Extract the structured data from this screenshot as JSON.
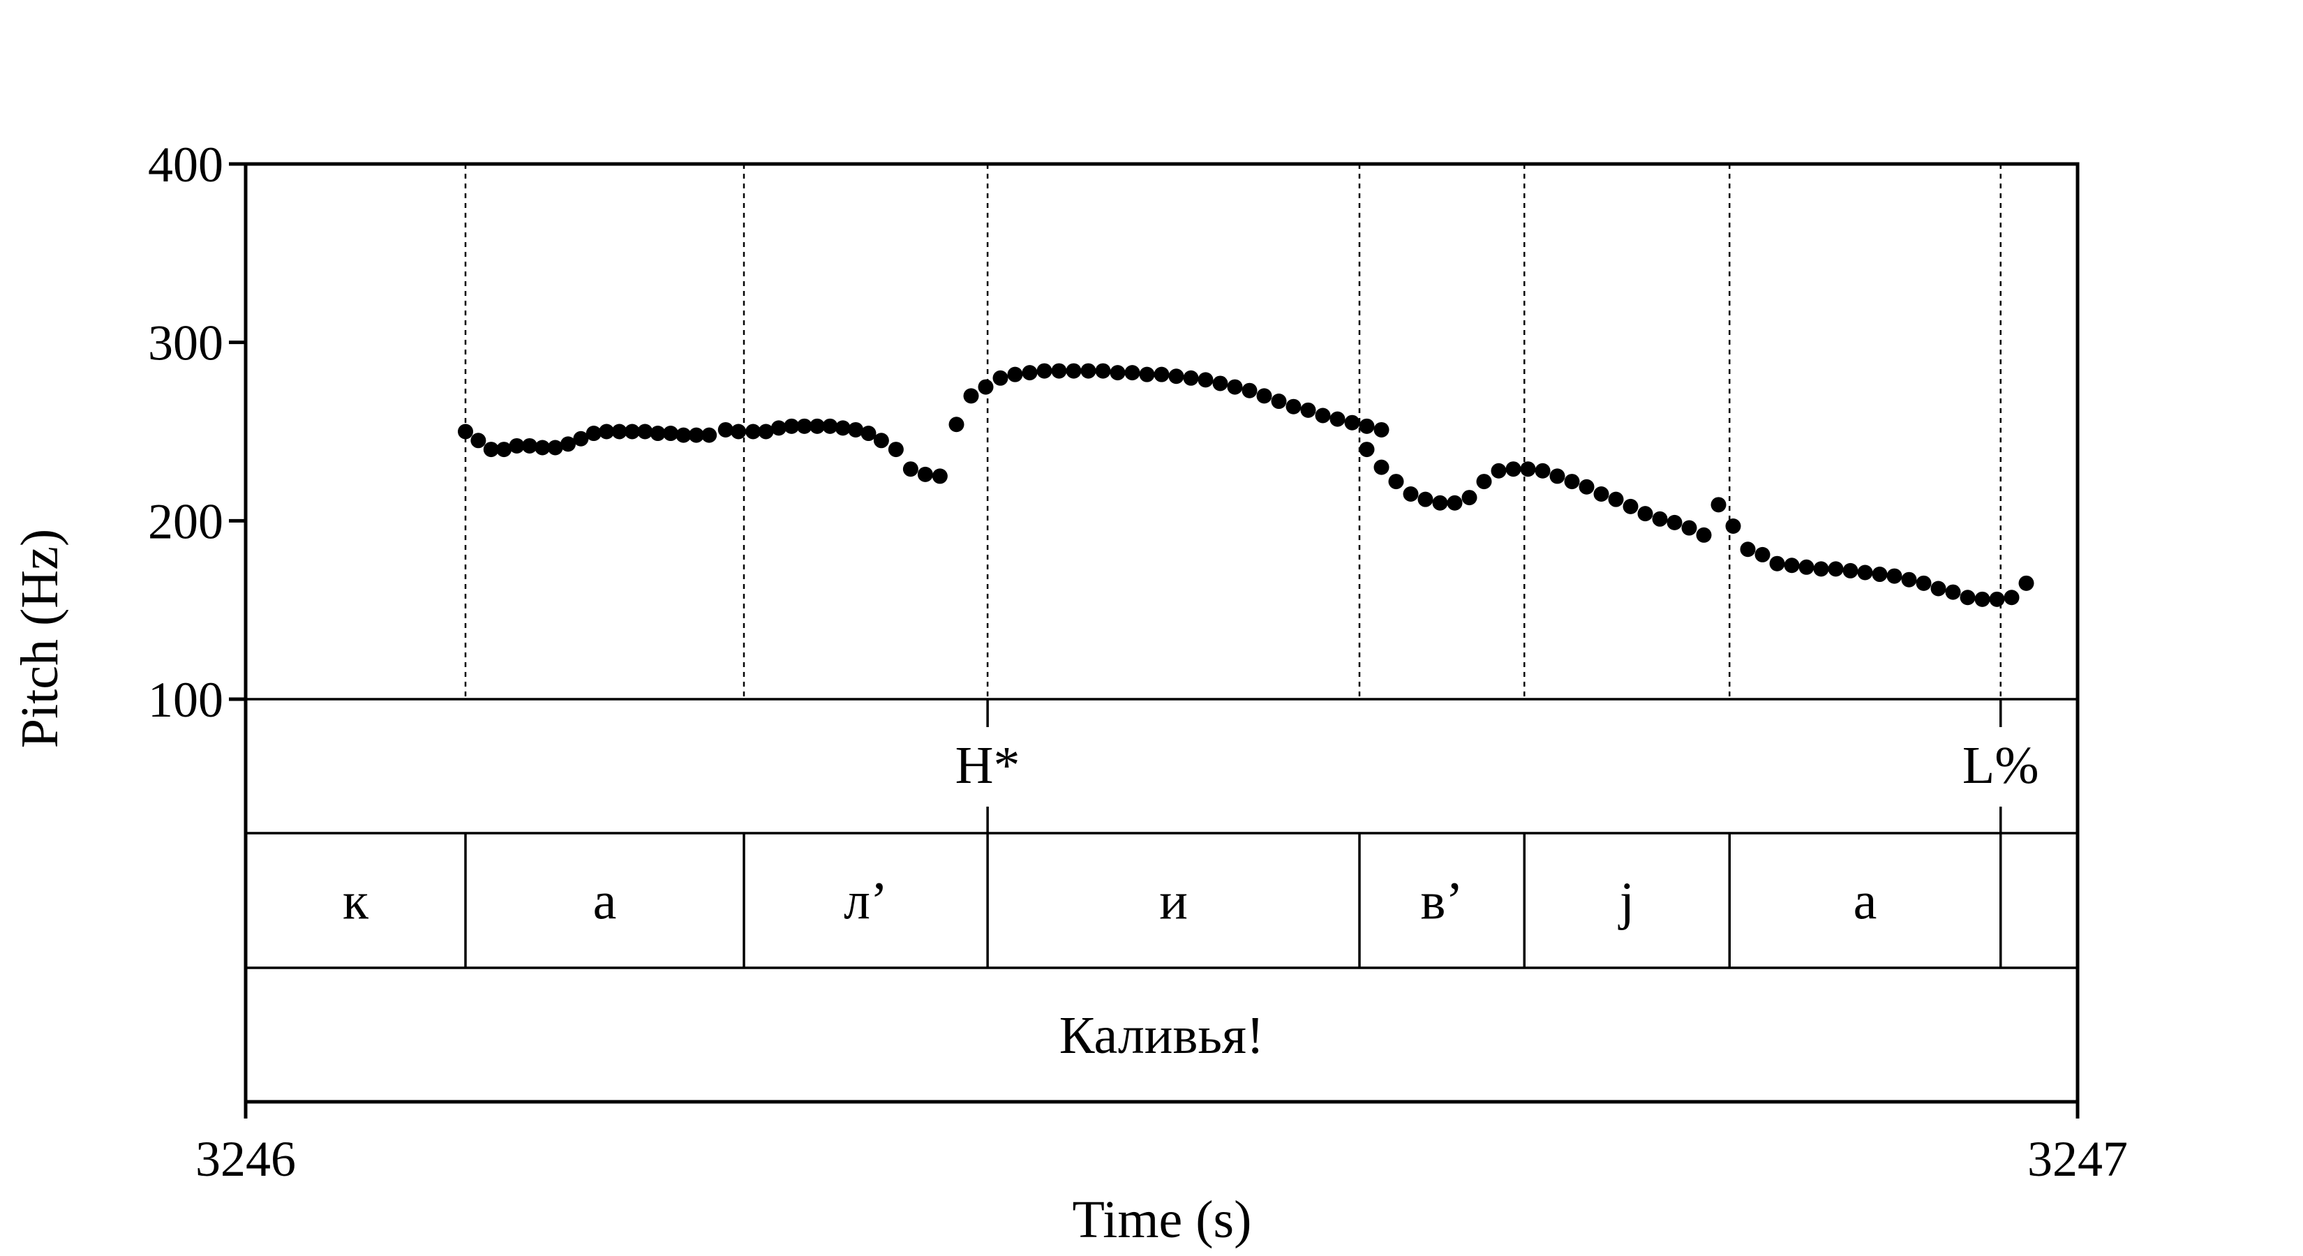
{
  "chart_data": {
    "type": "scatter",
    "xlabel": "Time (s)",
    "ylabel": "Pitch (Hz)",
    "xlim": [
      3246,
      3247
    ],
    "ylim": [
      100,
      400
    ],
    "x_ticks": [
      "3246",
      "3247"
    ],
    "y_ticks": [
      "100",
      "200",
      "300",
      "400"
    ],
    "grid": false,
    "legend": "none",
    "boundaries": [
      3246.12,
      3246.272,
      3246.405,
      3246.608,
      3246.698,
      3246.81,
      3246.958
    ],
    "pitch_points": [
      [
        3246.12,
        250
      ],
      [
        3246.127,
        245
      ],
      [
        3246.134,
        240
      ],
      [
        3246.141,
        240
      ],
      [
        3246.148,
        242
      ],
      [
        3246.155,
        242
      ],
      [
        3246.162,
        241
      ],
      [
        3246.169,
        241
      ],
      [
        3246.176,
        243
      ],
      [
        3246.183,
        246
      ],
      [
        3246.19,
        249
      ],
      [
        3246.197,
        250
      ],
      [
        3246.204,
        250
      ],
      [
        3246.211,
        250
      ],
      [
        3246.218,
        250
      ],
      [
        3246.225,
        249
      ],
      [
        3246.232,
        249
      ],
      [
        3246.239,
        248
      ],
      [
        3246.246,
        248
      ],
      [
        3246.253,
        248
      ],
      [
        3246.262,
        251
      ],
      [
        3246.269,
        250
      ],
      [
        3246.277,
        250
      ],
      [
        3246.284,
        250
      ],
      [
        3246.291,
        252
      ],
      [
        3246.298,
        253
      ],
      [
        3246.305,
        253
      ],
      [
        3246.312,
        253
      ],
      [
        3246.319,
        253
      ],
      [
        3246.326,
        252
      ],
      [
        3246.333,
        251
      ],
      [
        3246.34,
        249
      ],
      [
        3246.347,
        245
      ],
      [
        3246.355,
        240
      ],
      [
        3246.363,
        229
      ],
      [
        3246.371,
        226
      ],
      [
        3246.379,
        225
      ],
      [
        3246.388,
        254
      ],
      [
        3246.396,
        270
      ],
      [
        3246.404,
        275
      ],
      [
        3246.412,
        280
      ],
      [
        3246.42,
        282
      ],
      [
        3246.428,
        283
      ],
      [
        3246.436,
        284
      ],
      [
        3246.444,
        284
      ],
      [
        3246.452,
        284
      ],
      [
        3246.46,
        284
      ],
      [
        3246.468,
        284
      ],
      [
        3246.476,
        283
      ],
      [
        3246.484,
        283
      ],
      [
        3246.492,
        282
      ],
      [
        3246.5,
        282
      ],
      [
        3246.508,
        281
      ],
      [
        3246.516,
        280
      ],
      [
        3246.524,
        279
      ],
      [
        3246.532,
        277
      ],
      [
        3246.54,
        275
      ],
      [
        3246.548,
        273
      ],
      [
        3246.556,
        270
      ],
      [
        3246.564,
        267
      ],
      [
        3246.572,
        264
      ],
      [
        3246.58,
        262
      ],
      [
        3246.588,
        259
      ],
      [
        3246.596,
        257
      ],
      [
        3246.604,
        255
      ],
      [
        3246.612,
        253
      ],
      [
        3246.62,
        251
      ],
      [
        3246.612,
        240
      ],
      [
        3246.62,
        230
      ],
      [
        3246.628,
        222
      ],
      [
        3246.636,
        215
      ],
      [
        3246.644,
        212
      ],
      [
        3246.652,
        210
      ],
      [
        3246.66,
        210
      ],
      [
        3246.668,
        213
      ],
      [
        3246.676,
        222
      ],
      [
        3246.684,
        228
      ],
      [
        3246.692,
        229
      ],
      [
        3246.7,
        229
      ],
      [
        3246.708,
        228
      ],
      [
        3246.716,
        225
      ],
      [
        3246.724,
        222
      ],
      [
        3246.732,
        219
      ],
      [
        3246.74,
        215
      ],
      [
        3246.748,
        212
      ],
      [
        3246.756,
        208
      ],
      [
        3246.764,
        204
      ],
      [
        3246.772,
        201
      ],
      [
        3246.78,
        199
      ],
      [
        3246.788,
        196
      ],
      [
        3246.796,
        192
      ],
      [
        3246.804,
        209
      ],
      [
        3246.812,
        197
      ],
      [
        3246.82,
        184
      ],
      [
        3246.828,
        181
      ],
      [
        3246.836,
        176
      ],
      [
        3246.844,
        175
      ],
      [
        3246.852,
        174
      ],
      [
        3246.86,
        173
      ],
      [
        3246.868,
        173
      ],
      [
        3246.876,
        172
      ],
      [
        3246.884,
        171
      ],
      [
        3246.892,
        170
      ],
      [
        3246.9,
        169
      ],
      [
        3246.908,
        167
      ],
      [
        3246.916,
        165
      ],
      [
        3246.924,
        162
      ],
      [
        3246.932,
        160
      ],
      [
        3246.94,
        157
      ],
      [
        3246.948,
        156
      ],
      [
        3246.956,
        156
      ],
      [
        3246.964,
        157
      ],
      [
        3246.972,
        165
      ]
    ],
    "tone_tier": [
      {
        "time": 3246.405,
        "label": "H*"
      },
      {
        "time": 3246.958,
        "label": "L%"
      }
    ],
    "segment_tier": [
      "к",
      "а",
      "л’",
      "и",
      "в’",
      "j",
      "а",
      ""
    ],
    "word_tier": [
      "Каливья!"
    ]
  }
}
